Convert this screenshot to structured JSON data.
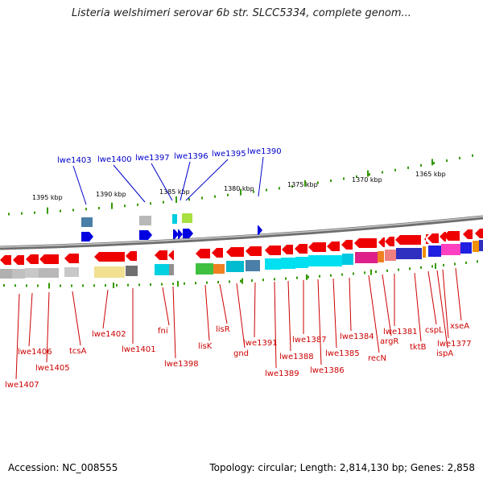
{
  "title": "Listeria welshimeri serovar 6b str. SLCC5334, complete genom...",
  "footer": {
    "accession": "Accession: NC_008555",
    "topology": "Topology: circular; Length: 2,814,130 bp; Genes: 2,858"
  },
  "colors": {
    "forward_label": "#0000cc",
    "reverse_label": "#cc0000",
    "tick": "#339900",
    "backbone": "#808080"
  },
  "scale_labels": [
    "1395 kbp",
    "1390 kbp",
    "1385 kbp",
    "1380 kbp",
    "1375 kbp",
    "1370 kbp",
    "1365 kbp"
  ],
  "forward_genes": [
    "lwe1403",
    "lwe1400",
    "lwe1397",
    "lwe1396",
    "lwe1395",
    "lwe1390"
  ],
  "reverse_genes": [
    "lwe1407",
    "lwe1406",
    "lwe1405",
    "tcsA",
    "lwe1402",
    "lwe1401",
    "fni",
    "lwe1398",
    "lisK",
    "lisR",
    "gnd",
    "lwe1391",
    "lwe1389",
    "lwe1388",
    "lwe1387",
    "lwe1386",
    "lwe1385",
    "lwe1384",
    "recN",
    "argR",
    "lwe1381",
    "tktB",
    "cspL",
    "ispA",
    "lwe1377",
    "xseA"
  ]
}
